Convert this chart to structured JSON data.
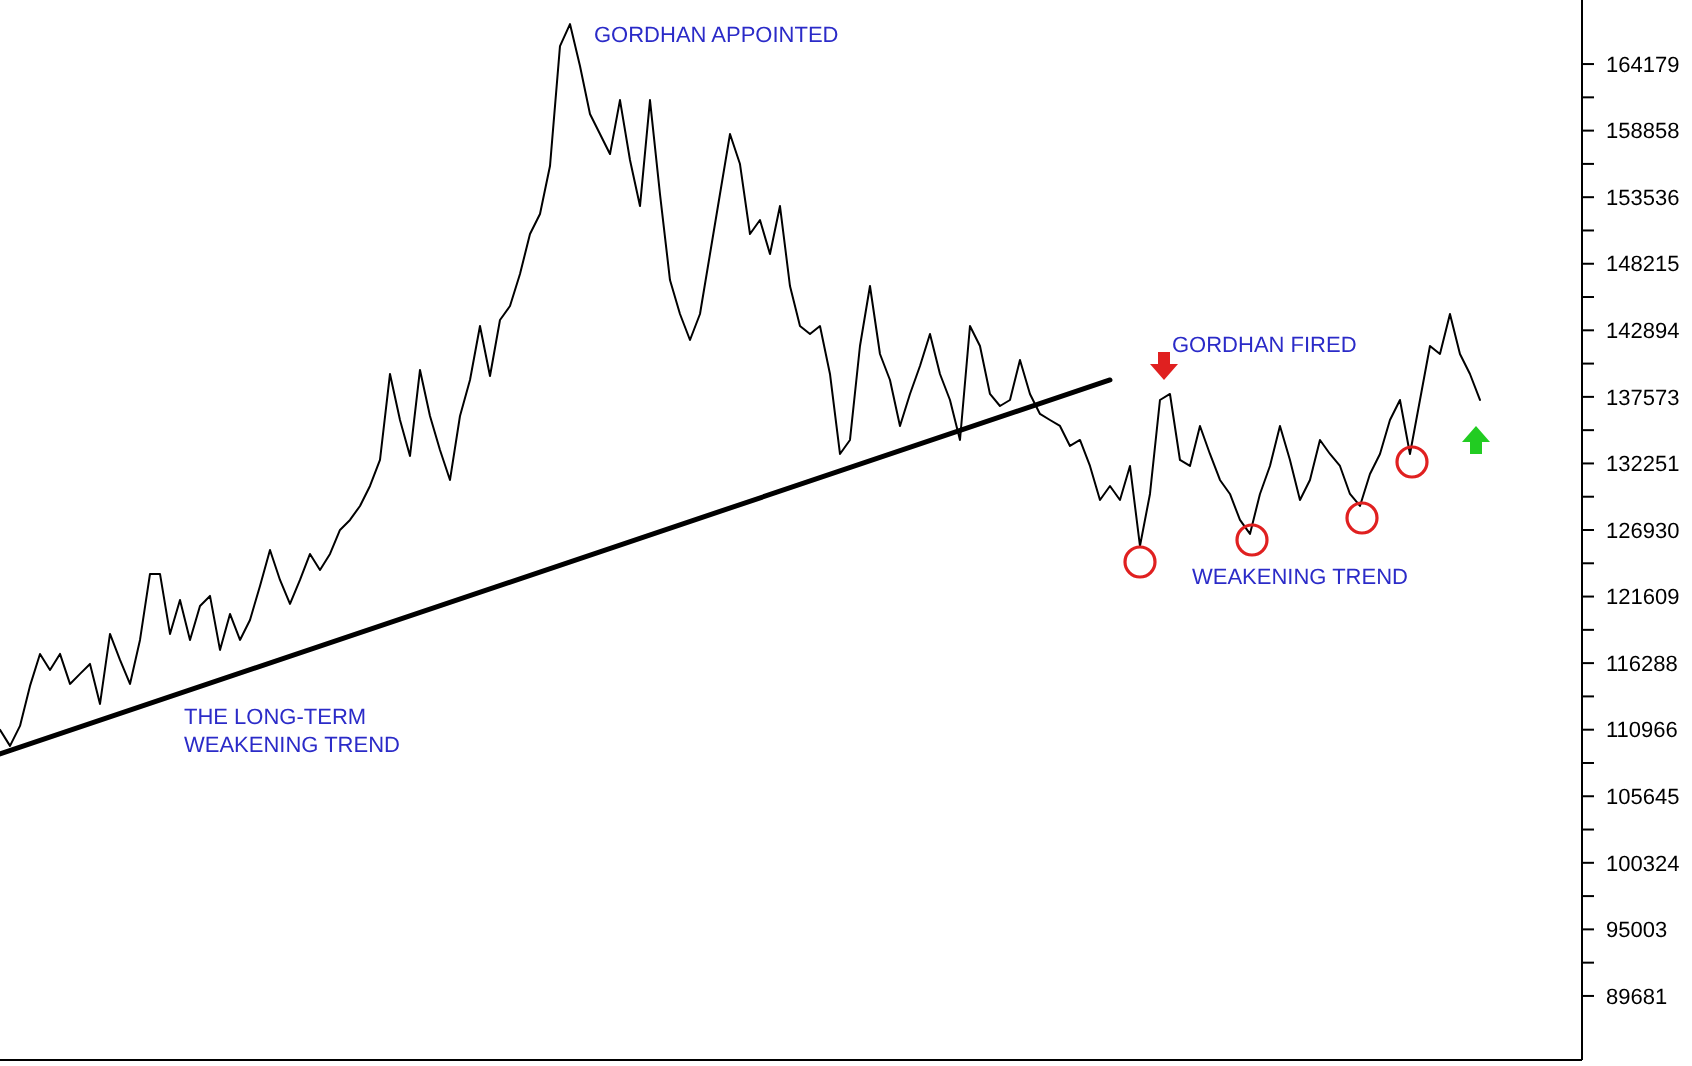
{
  "chart_data": {
    "type": "line",
    "categories": [
      null,
      null,
      null,
      null,
      null,
      null,
      null,
      null,
      null,
      null,
      null,
      null,
      null,
      null,
      null,
      null,
      null,
      null,
      null,
      null,
      null,
      null,
      null,
      null,
      null,
      null,
      null,
      null,
      null,
      null,
      null,
      null,
      null,
      null,
      null,
      null,
      null,
      null,
      null,
      null,
      null,
      null,
      null,
      null,
      null,
      null,
      null,
      null,
      null,
      null,
      null,
      null,
      null,
      null,
      null,
      null,
      null,
      null,
      null,
      null,
      null,
      null,
      null,
      null,
      null,
      null,
      null,
      null,
      null,
      null,
      null,
      null,
      null,
      null,
      null,
      null,
      null,
      null,
      null,
      null,
      null,
      null,
      null,
      null,
      null,
      null,
      null,
      null,
      null,
      null,
      null,
      null,
      null,
      null,
      null,
      null,
      null,
      null,
      null,
      null,
      null,
      null,
      null,
      null,
      null,
      null,
      null,
      null,
      null,
      null,
      null,
      null,
      null,
      null,
      null,
      null,
      null,
      null,
      null,
      null,
      null,
      null,
      null,
      null,
      null,
      null,
      null,
      null,
      null,
      null,
      null,
      null,
      null,
      null,
      null,
      null,
      null,
      null,
      null,
      null,
      null,
      null,
      null,
      null,
      null,
      null,
      null,
      null,
      null
    ],
    "series": [
      {
        "color": "#000000",
        "values": [
          110949,
          109670,
          111268,
          114465,
          117023,
          115744,
          117023,
          114625,
          115425,
          116224,
          113027,
          118622,
          116543,
          114625,
          118142,
          123417,
          123417,
          118622,
          121339,
          118142,
          120859,
          121659,
          117343,
          120220,
          118142,
          119740,
          122458,
          125335,
          122937,
          121019,
          122937,
          125016,
          123737,
          125016,
          126934,
          127733,
          128852,
          130450,
          132528,
          139402,
          135725,
          132848,
          139722,
          136045,
          133328,
          130930,
          136045,
          138922,
          143238,
          139242,
          143718,
          144837,
          147395,
          150592,
          152190,
          156026,
          165617,
          167376,
          164019,
          160183,
          158584,
          156986,
          161301,
          156506,
          152829,
          161301,
          153789,
          146915,
          144198,
          142119,
          144198,
          148993,
          153789,
          158584,
          156186,
          150592,
          151710,
          148993,
          152829,
          146435,
          143238,
          142599,
          143238,
          139402,
          133008,
          134127,
          141640,
          146435,
          141001,
          138922,
          135246,
          137804,
          140041,
          142599,
          139402,
          137324,
          134127,
          143238,
          141640,
          137804,
          136844,
          137324,
          140521,
          137804,
          136205,
          135725,
          135246,
          133647,
          134127,
          132049,
          129331,
          130450,
          129331,
          132049,
          125655,
          129811,
          137324,
          137804,
          132528,
          132049,
          135246,
          133008,
          130930,
          129811,
          127733,
          126614,
          129811,
          132049,
          135246,
          132528,
          129331,
          130930,
          134127,
          133008,
          132049,
          129811,
          128852,
          131410,
          133008,
          135725,
          137324,
          133008,
          137324,
          141640,
          141001,
          144198,
          141001,
          139402,
          137324
        ]
      },
      {
        "type": "line",
        "color": "#000000",
        "values": [
          109031,
          null,
          null,
          null,
          null,
          null,
          null,
          null,
          null,
          null,
          null,
          null,
          null,
          null,
          null,
          null,
          null,
          null,
          null,
          null,
          null,
          null,
          null,
          null,
          null,
          null,
          null,
          null,
          null,
          null,
          null,
          null,
          null,
          null,
          null,
          null,
          null,
          null,
          null,
          null,
          null,
          null,
          null,
          null,
          null,
          null,
          null,
          null,
          null,
          null,
          null,
          null,
          null,
          null,
          null,
          null,
          null,
          null,
          null,
          null,
          null,
          null,
          null,
          null,
          null,
          null,
          null,
          null,
          null,
          null,
          null,
          null,
          null,
          null,
          null,
          null,
          null,
          null,
          null,
          null,
          null,
          null,
          null,
          null,
          null,
          null,
          null,
          null,
          null,
          null,
          null,
          null,
          null,
          null,
          null,
          null,
          null,
          null,
          null,
          null,
          null,
          null,
          null,
          null,
          null,
          null,
          null,
          null,
          null,
          null,
          null,
          138922,
          null,
          null,
          null,
          null,
          null,
          null,
          null,
          null,
          null,
          null,
          null,
          null,
          null,
          null,
          null,
          null,
          null,
          null,
          null,
          null,
          null,
          null,
          null,
          null,
          null,
          null,
          null,
          null,
          null,
          null,
          null,
          null,
          null,
          null,
          null,
          null,
          null
        ]
      }
    ],
    "ylim": [
      84560,
      169300
    ],
    "yticks": [
      164179,
      158858,
      153536,
      148215,
      142894,
      137573,
      132251,
      126930,
      121609,
      116288,
      110966,
      105645,
      100324,
      95003,
      89681
    ],
    "tick_labels": "y",
    "annotations": [
      "GORDHAN APPOINTED",
      "GORDHAN FIRED",
      "WEAKENING TREND",
      "THE LONG-TERM\nWEAKENING TREND"
    ]
  }
}
